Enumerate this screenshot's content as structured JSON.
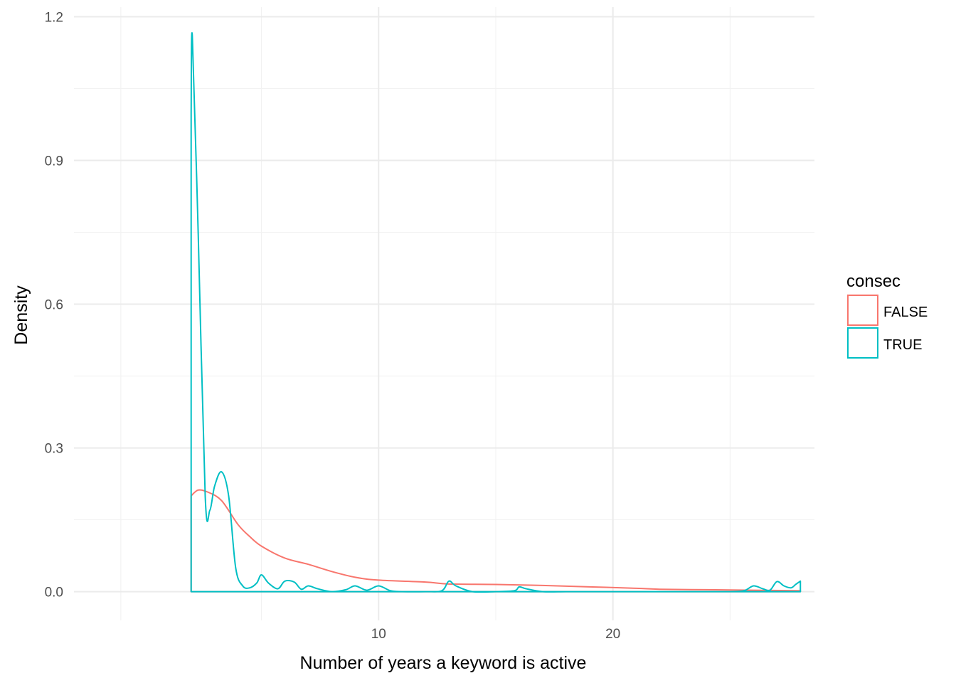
{
  "chart_data": {
    "type": "area",
    "subtype": "density",
    "title": "",
    "xlabel": "Number of years a keyword is active",
    "ylabel": "Density",
    "xlim": [
      -3,
      28.6
    ],
    "ylim": [
      -0.06,
      1.22
    ],
    "x_ticks": [
      10,
      20
    ],
    "x_tick_labels": [
      "10",
      "20"
    ],
    "x_minor_ticks": [
      -1,
      5,
      15,
      25
    ],
    "y_ticks": [
      0.0,
      0.3,
      0.6,
      0.9,
      1.2
    ],
    "y_tick_labels": [
      "0.0",
      "0.3",
      "0.6",
      "0.9",
      "1.2"
    ],
    "y_minor_ticks": [
      0.15,
      0.45,
      0.75,
      1.05
    ],
    "grid": true,
    "legend": {
      "title": "consec",
      "position": "right"
    },
    "series": [
      {
        "name": "FALSE",
        "color": "#F8766D",
        "x": [
          2,
          2.3,
          2.7,
          3.3,
          4,
          4.5,
          5,
          6,
          7,
          8,
          9,
          10,
          12,
          13,
          15,
          17,
          19,
          21,
          22,
          24,
          26,
          28
        ],
        "y": [
          0.2,
          0.212,
          0.208,
          0.19,
          0.14,
          0.115,
          0.095,
          0.07,
          0.057,
          0.042,
          0.03,
          0.024,
          0.02,
          0.016,
          0.015,
          0.013,
          0.01,
          0.007,
          0.005,
          0.004,
          0.003,
          0.002
        ]
      },
      {
        "name": "TRUE",
        "color": "#00BFC4",
        "x": [
          2,
          2.05,
          2.3,
          2.6,
          2.8,
          3,
          3.3,
          3.6,
          3.9,
          4.2,
          4.5,
          4.8,
          5,
          5.3,
          5.7,
          6,
          6.4,
          6.7,
          7,
          7.4,
          8,
          8.6,
          9,
          9.5,
          10,
          10.5,
          11,
          12,
          12.7,
          13,
          13.3,
          14,
          15,
          15.8,
          16,
          16.3,
          17,
          18,
          19,
          20,
          21,
          22,
          23,
          24,
          25,
          25.6,
          26,
          26.4,
          26.7,
          27,
          27.3,
          27.6,
          27.8,
          28
        ],
        "y": [
          1.0,
          1.16,
          0.75,
          0.2,
          0.17,
          0.22,
          0.25,
          0.2,
          0.05,
          0.012,
          0.008,
          0.018,
          0.035,
          0.018,
          0.006,
          0.022,
          0.02,
          0.005,
          0.012,
          0.006,
          0.0,
          0.004,
          0.012,
          0.003,
          0.012,
          0.002,
          0.0,
          0.0,
          0.002,
          0.022,
          0.012,
          0.0,
          0.0,
          0.002,
          0.01,
          0.006,
          0.0,
          0.0,
          0.0,
          0.0,
          0.0,
          0.0,
          0.0,
          0.0,
          0.0,
          0.002,
          0.012,
          0.006,
          0.003,
          0.021,
          0.012,
          0.008,
          0.015,
          0.022
        ]
      }
    ]
  }
}
